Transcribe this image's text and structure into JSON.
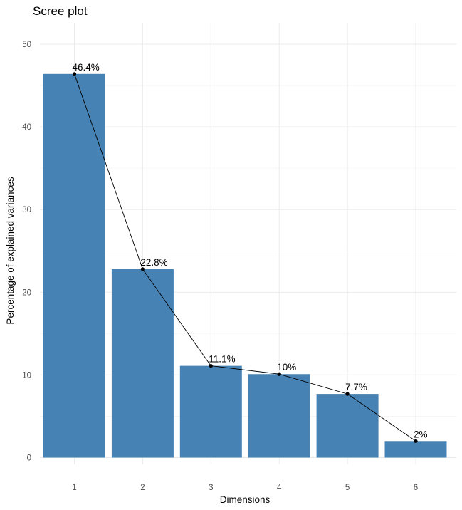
{
  "chart_data": {
    "type": "bar",
    "title": "Scree plot",
    "xlabel": "Dimensions",
    "ylabel": "Percentage of explained variances",
    "categories": [
      "1",
      "2",
      "3",
      "4",
      "5",
      "6"
    ],
    "values": [
      46.4,
      22.8,
      11.1,
      10.1,
      7.7,
      2.0
    ],
    "data_labels": [
      "46.4%",
      "22.8%",
      "11.1%",
      "10%",
      "7.7%",
      "2%"
    ],
    "line_overlay": true,
    "ylim": [
      0,
      52
    ],
    "yticks": [
      0,
      10,
      20,
      30,
      40,
      50
    ],
    "grid": true,
    "legend": "none",
    "colors": {
      "bar": "#4682B4",
      "line": "#000000",
      "point": "#000000",
      "grid_major": "#EBEBEB",
      "grid_minor": "#F5F5F5"
    }
  }
}
